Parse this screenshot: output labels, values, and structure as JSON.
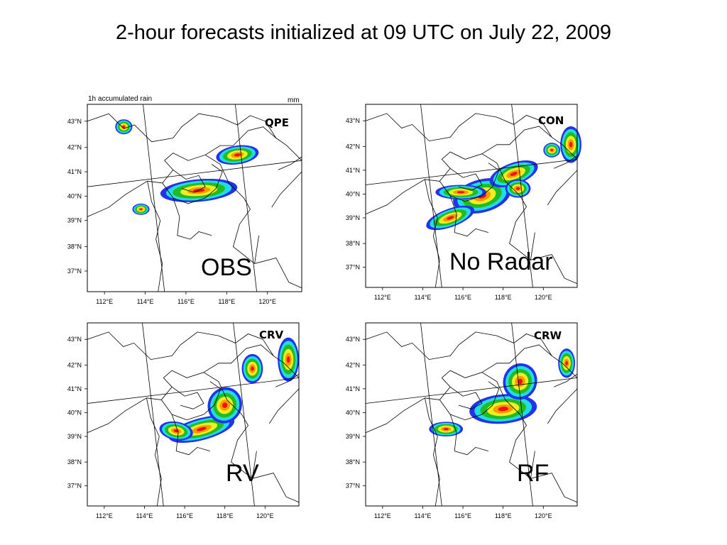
{
  "title": "2-hour forecasts initialized at 09 UTC on July 22, 2009",
  "lat_labels": [
    "43°N",
    "42°N",
    "41°N",
    "40°N",
    "39°N",
    "38°N",
    "37°N"
  ],
  "lon_labels": [
    "112°E",
    "114°E",
    "116°E",
    "118°E",
    "120°E"
  ],
  "panels": {
    "obs": {
      "header_left": "1h accumulated rain",
      "header_right": "mm",
      "tag": "QPE",
      "label": "OBS"
    },
    "con": {
      "tag": "CON",
      "label": "No Radar"
    },
    "crv": {
      "tag": "CRV",
      "label": "RV"
    },
    "crw": {
      "tag": "CRW",
      "label": "RF"
    }
  },
  "colors": {
    "blue": "#2233ee",
    "cyan": "#22dddd",
    "green": "#22bb22",
    "yellow": "#eeee22",
    "orange": "#ff9900",
    "red": "#ee1111"
  }
}
